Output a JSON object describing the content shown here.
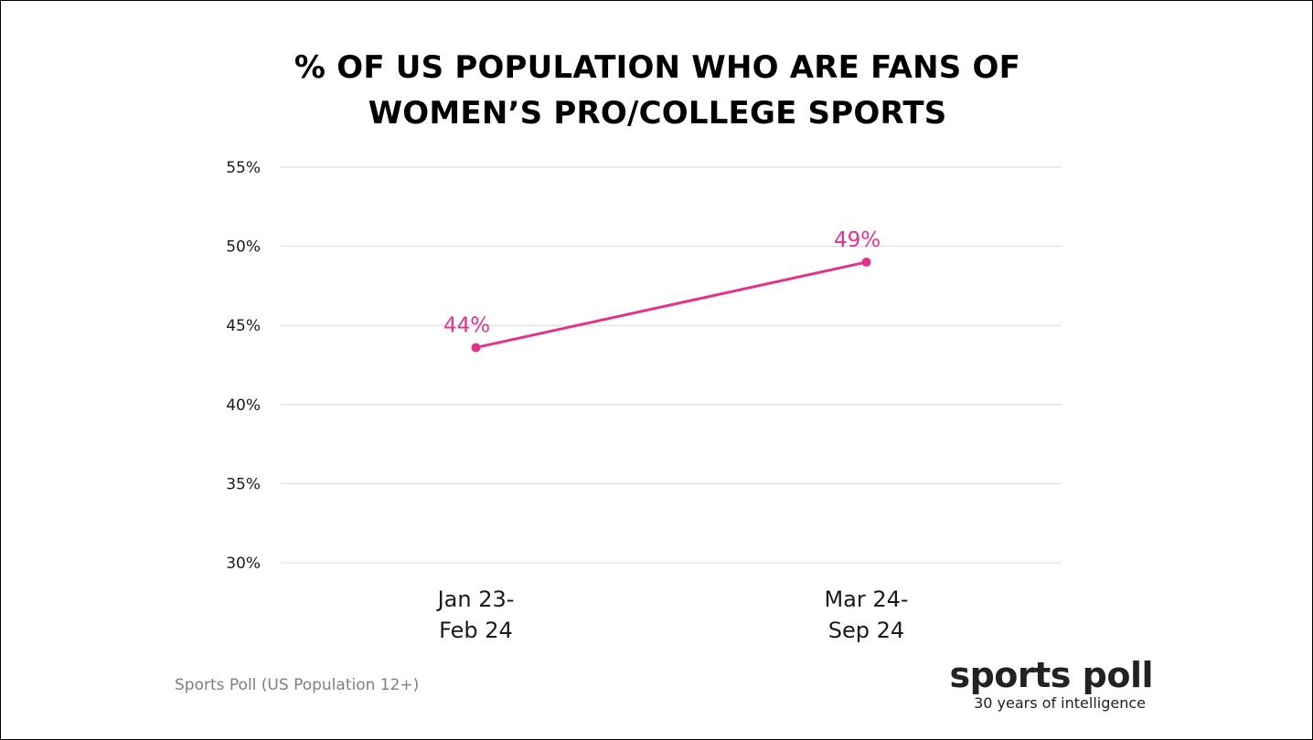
{
  "chart_data": {
    "type": "line",
    "title": [
      "% OF US POPULATION WHO ARE FANS OF",
      "WOMEN’S PRO/COLLEGE SPORTS"
    ],
    "categories": [
      [
        "Jan 23-",
        "Feb 24"
      ],
      [
        "Mar 24-",
        "Sep 24"
      ]
    ],
    "series": [
      {
        "values": [
          43.6,
          49.0
        ],
        "labels": [
          "44%",
          "49%"
        ],
        "color": "#e6318a"
      }
    ],
    "ylim": [
      30,
      55
    ],
    "yticks": [
      30,
      35,
      40,
      45,
      50,
      55
    ],
    "ytick_labels": [
      "30%",
      "35%",
      "40%",
      "45%",
      "50%",
      "55%"
    ],
    "xlabel": "",
    "ylabel": "",
    "grid": true,
    "gridline_color": "#d9d9d9",
    "legend": "none"
  },
  "footer": {
    "source": "Sports Poll (US Population 12+)",
    "logo_name": "sports poll",
    "logo_tagline": "30 years of intelligence"
  }
}
